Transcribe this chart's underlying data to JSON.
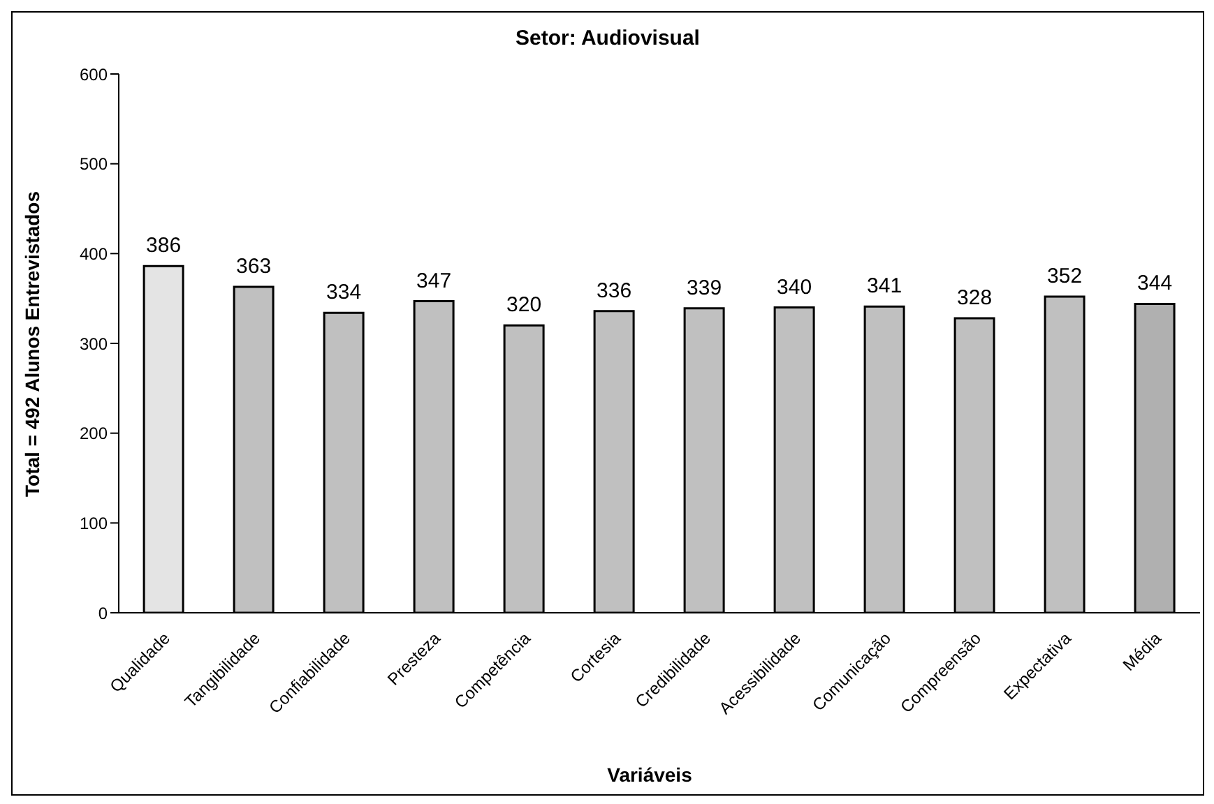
{
  "chart_data": {
    "type": "bar",
    "title": "Setor: Audiovisual",
    "xlabel": "Variáveis",
    "ylabel": "Total = 492 Alunos Entrevistados",
    "categories": [
      "Qualidade",
      "Tangibilidade",
      "Confiabilidade",
      "Presteza",
      "Competência",
      "Cortesia",
      "Credibilidade",
      "Acessibilidade",
      "Comunicação",
      "Compreensão",
      "Expectativa",
      "Média"
    ],
    "values": [
      386,
      363,
      334,
      347,
      320,
      336,
      339,
      340,
      341,
      328,
      352,
      344
    ],
    "colors": [
      "#e4e4e4",
      "#c0c0c0",
      "#c0c0c0",
      "#c0c0c0",
      "#c0c0c0",
      "#c0c0c0",
      "#c0c0c0",
      "#c0c0c0",
      "#c0c0c0",
      "#c0c0c0",
      "#c0c0c0",
      "#b0b0b0"
    ],
    "ylim": [
      0,
      600
    ],
    "yticks": [
      0,
      100,
      200,
      300,
      400,
      500,
      600
    ],
    "grid": false,
    "legend": false,
    "data_labels": true
  }
}
